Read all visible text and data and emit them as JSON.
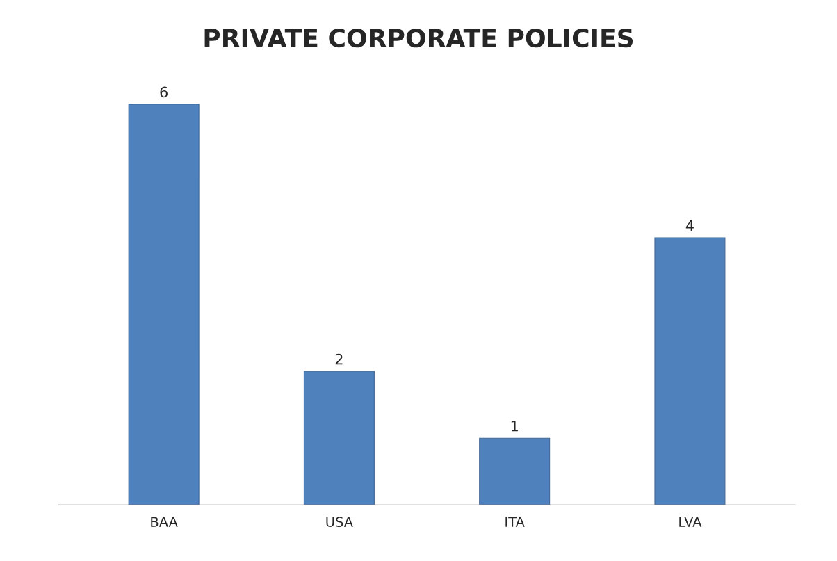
{
  "chart_data": {
    "type": "bar",
    "title": "PRIVATE CORPORATE POLICIES",
    "categories": [
      "BAA",
      "USA",
      "ITA",
      "LVA"
    ],
    "values": [
      6,
      2,
      1,
      4
    ],
    "color": "#4f81bd",
    "data_labels": true,
    "grid": false,
    "legend": false
  }
}
